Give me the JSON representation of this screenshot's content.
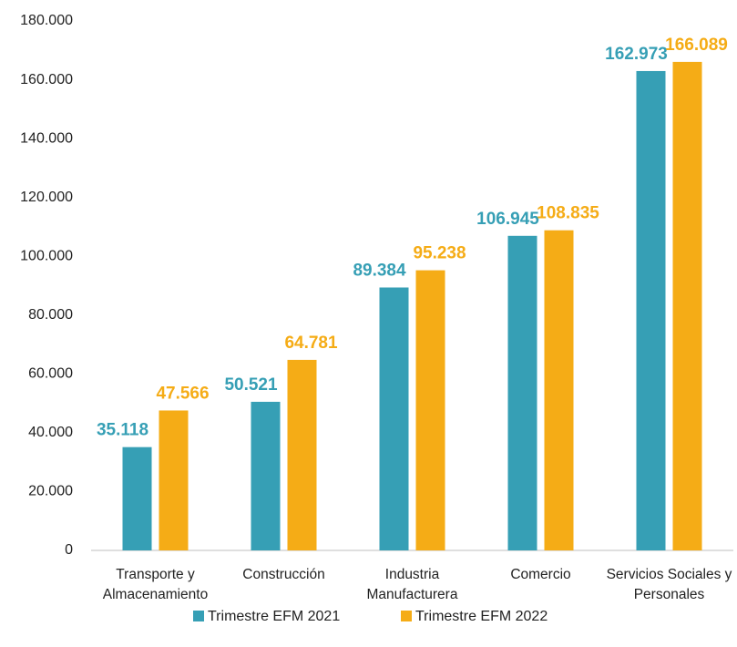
{
  "chart_data": {
    "type": "bar",
    "categories": [
      "Transporte y Almacenamiento",
      "Construcción",
      "Industria Manufacturera",
      "Comercio",
      "Servicios Sociales y Personales"
    ],
    "series": [
      {
        "name": "Trimestre EFM 2021",
        "color": "#369fb5",
        "values": [
          35118,
          50521,
          89384,
          106945,
          162973
        ],
        "value_labels": [
          "35.118",
          "50.521",
          "89.384",
          "106.945",
          "162.973"
        ]
      },
      {
        "name": "Trimestre EFM 2022",
        "color": "#f5ac16",
        "values": [
          47566,
          64781,
          95238,
          108835,
          166089
        ],
        "value_labels": [
          "47.566",
          "64.781",
          "95.238",
          "108.835",
          "166.089"
        ]
      }
    ],
    "ylim": [
      0,
      180000
    ],
    "yticks": [
      0,
      {
        "value": 20000,
        "label": "20.000"
      },
      {
        "value": 40000,
        "label": "40.000"
      },
      {
        "value": 60000,
        "label": "60.000"
      },
      {
        "value": 80000,
        "label": "80.000"
      },
      {
        "value": 100000,
        "label": "100.000"
      },
      {
        "value": 120000,
        "label": "120.000"
      },
      {
        "value": 140000,
        "label": "140.000"
      },
      {
        "value": 160000,
        "label": "160.000"
      },
      {
        "value": 180000,
        "label": "180.000"
      }
    ],
    "grid": false,
    "legend": "bottom"
  }
}
